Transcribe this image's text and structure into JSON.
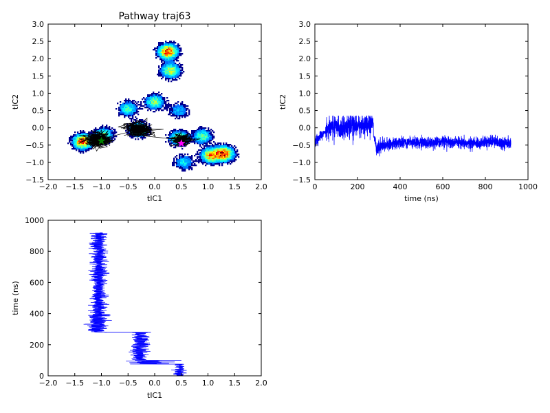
{
  "chart_data": [
    {
      "type": "heatmap",
      "title": "Pathway traj63",
      "xlabel": "tIC1",
      "ylabel": "tIC2",
      "xlim": [
        -2.0,
        2.0
      ],
      "ylim": [
        -1.5,
        3.0
      ],
      "xticks": [
        "−2.0",
        "−1.5",
        "−1.0",
        "−0.5",
        "0.0",
        "0.5",
        "1.0",
        "1.5",
        "2.0"
      ],
      "yticks": [
        "−1.5",
        "−1.0",
        "−0.5",
        "0.0",
        "0.5",
        "1.0",
        "1.5",
        "2.0",
        "2.5",
        "3.0"
      ],
      "density_peaks": [
        {
          "x": 0.25,
          "y": 2.2,
          "intensity": 1.0
        },
        {
          "x": 0.3,
          "y": 1.65,
          "intensity": 0.65
        },
        {
          "x": 0.0,
          "y": 0.75,
          "intensity": 0.55
        },
        {
          "x": -0.5,
          "y": 0.55,
          "intensity": 0.45
        },
        {
          "x": 0.45,
          "y": 0.5,
          "intensity": 0.3
        },
        {
          "x": -1.35,
          "y": -0.4,
          "intensity": 0.95
        },
        {
          "x": -0.95,
          "y": -0.2,
          "intensity": 0.5
        },
        {
          "x": -0.3,
          "y": -0.05,
          "intensity": 0.6
        },
        {
          "x": 0.45,
          "y": -0.3,
          "intensity": 0.6
        },
        {
          "x": 0.9,
          "y": -0.25,
          "intensity": 0.5
        },
        {
          "x": 1.3,
          "y": -0.75,
          "intensity": 1.0
        },
        {
          "x": 1.05,
          "y": -0.8,
          "intensity": 0.8
        },
        {
          "x": 0.55,
          "y": -1.0,
          "intensity": 0.35
        }
      ],
      "pathway_markers": [
        {
          "label": "start",
          "x": 0.5,
          "y": -0.45,
          "color": "#ff00ff"
        },
        {
          "label": "end",
          "x": -1.0,
          "y": -0.38,
          "color": "#008000"
        }
      ]
    },
    {
      "type": "line",
      "xlabel": "time (ns)",
      "ylabel": "tIC2",
      "xlim": [
        0,
        1000
      ],
      "ylim": [
        -1.5,
        3.0
      ],
      "xticks": [
        "0",
        "200",
        "400",
        "600",
        "800",
        "1000"
      ],
      "yticks": [
        "−1.5",
        "−1.0",
        "−0.5",
        "0.0",
        "0.5",
        "1.0",
        "1.5",
        "2.0",
        "2.5",
        "3.0"
      ],
      "series_color": "#0000ff",
      "x": [
        0,
        20,
        50,
        80,
        120,
        160,
        200,
        240,
        270,
        290,
        320,
        380,
        450,
        520,
        600,
        680,
        760,
        840,
        920
      ],
      "y": [
        -0.4,
        -0.3,
        -0.05,
        0.05,
        0.0,
        0.05,
        0.05,
        0.1,
        0.1,
        -0.6,
        -0.5,
        -0.45,
        -0.4,
        -0.45,
        -0.4,
        -0.45,
        -0.45,
        -0.4,
        -0.45
      ],
      "y_range": [
        {
          "x0": 0,
          "x1": 50,
          "low": -0.6,
          "high": -0.15
        },
        {
          "x0": 50,
          "x1": 275,
          "low": -0.45,
          "high": 0.3
        },
        {
          "x0": 275,
          "x1": 320,
          "low": -0.8,
          "high": -0.3
        },
        {
          "x0": 320,
          "x1": 920,
          "low": -0.65,
          "high": -0.25
        }
      ]
    },
    {
      "type": "line",
      "xlabel": "tIC1",
      "ylabel": "time (ns)",
      "xlim": [
        -2.0,
        2.0
      ],
      "ylim": [
        0,
        1000
      ],
      "xticks": [
        "−2.0",
        "−1.5",
        "−1.0",
        "−0.5",
        "0.0",
        "0.5",
        "1.0",
        "1.5",
        "2.0"
      ],
      "yticks": [
        "0",
        "200",
        "400",
        "600",
        "800",
        "1000"
      ],
      "series_color": "#0000ff",
      "time_segments": [
        {
          "t0": 0,
          "t1": 40,
          "low": 0.3,
          "high": 0.6
        },
        {
          "t0": 40,
          "t1": 75,
          "low": 0.35,
          "high": 0.6
        },
        {
          "t0": 75,
          "t1": 100,
          "low": -0.7,
          "high": 0.5
        },
        {
          "t0": 100,
          "t1": 280,
          "low": -0.5,
          "high": -0.05
        },
        {
          "t0": 280,
          "t1": 400,
          "low": -1.35,
          "high": -0.8
        },
        {
          "t0": 400,
          "t1": 920,
          "low": -1.25,
          "high": -0.85
        }
      ]
    }
  ]
}
